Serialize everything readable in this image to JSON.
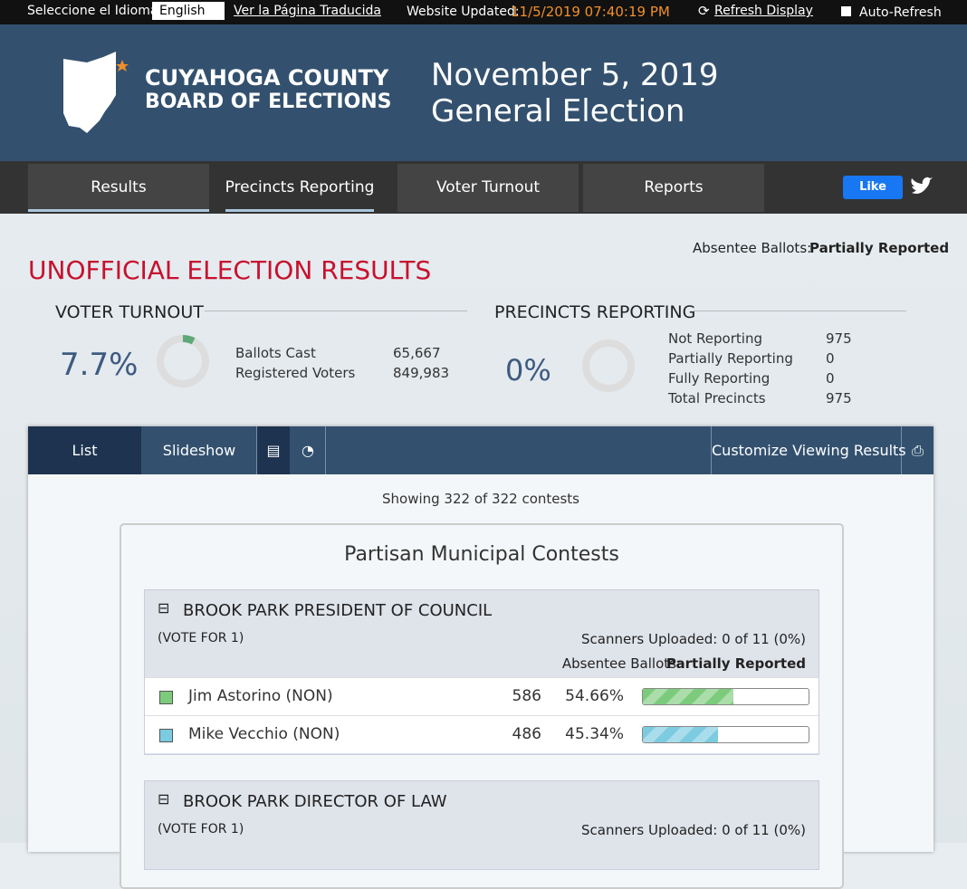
{
  "topbar": {
    "language_label": "Seleccione el Idioma:",
    "language": "English",
    "translate_link": "Ver la Página Traducida",
    "updated_label": "Website Updated:",
    "updated": "11/5/2019 07:40:19 PM",
    "refresh": "Refresh Display",
    "auto_refresh": "Auto-Refresh"
  },
  "header": {
    "org_line1": "CUYAHOGA COUNTY",
    "org_line2": "BOARD OF ELECTIONS",
    "title": "November 5, 2019 General Election"
  },
  "nav": {
    "tabs": [
      "Results",
      "Precincts Reporting",
      "Voter Turnout",
      "Reports"
    ],
    "like": "Like"
  },
  "absentee": {
    "label": "Absentee Ballots:",
    "status": "Partially Reported"
  },
  "heading": "UNOFFICIAL ELECTION RESULTS",
  "turnout": {
    "title": "VOTER TURNOUT",
    "percent": 7.7,
    "percent_label": "7.7%",
    "color": "#5fa878",
    "stats": [
      [
        "Ballots Cast",
        "65,667"
      ],
      [
        "Registered Voters",
        "849,983"
      ]
    ]
  },
  "precincts": {
    "title": "PRECINCTS REPORTING",
    "percent": 0,
    "percent_label": "0%",
    "color": "#5fa878",
    "stats": [
      [
        "Not Reporting",
        "975"
      ],
      [
        "Partially Reporting",
        "0"
      ],
      [
        "Fully Reporting",
        "0"
      ],
      [
        "Total Precincts",
        "975"
      ]
    ]
  },
  "toolbar": {
    "list": "List",
    "slideshow": "Slideshow",
    "customize": "Customize Viewing Results"
  },
  "showing": "Showing 322 of 322 contests",
  "section_title": "Partisan Municipal Contests",
  "contests": [
    {
      "name": "BROOK PARK PRESIDENT OF COUNCIL",
      "vote_for": "(VOTE FOR 1)",
      "scanners": "Scanners Uploaded: 0 of 11 (0%)",
      "absentee_label": "Absentee Ballots:",
      "absentee_status": "Partially Reported",
      "candidates": [
        {
          "name": "Jim Astorino (NON)",
          "color": "#7ccb7c",
          "votes": "586",
          "percent": 54.66,
          "percent_label": "54.66%"
        },
        {
          "name": "Mike Vecchio (NON)",
          "color": "#7ccbe0",
          "votes": "486",
          "percent": 45.34,
          "percent_label": "45.34%"
        }
      ]
    },
    {
      "name": "BROOK PARK DIRECTOR OF LAW",
      "vote_for": "(VOTE FOR 1)",
      "scanners": "Scanners Uploaded: 0 of 11 (0%)"
    }
  ]
}
